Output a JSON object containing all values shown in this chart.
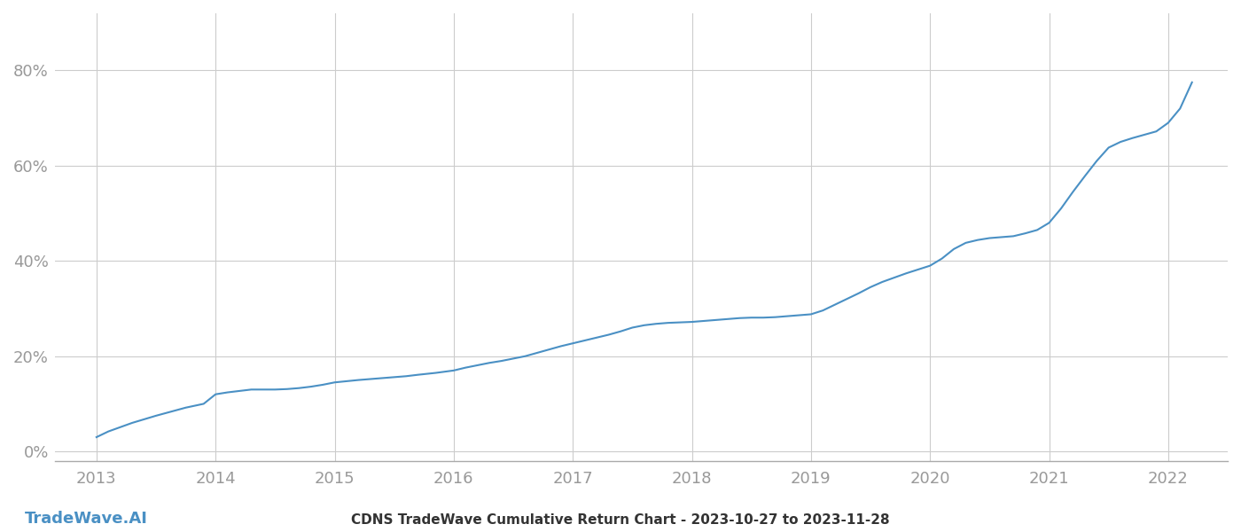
{
  "title_bottom": "CDNS TradeWave Cumulative Return Chart - 2023-10-27 to 2023-11-28",
  "watermark": "TradeWave.AI",
  "line_color": "#4a90c4",
  "background_color": "#ffffff",
  "grid_color": "#cccccc",
  "x_values": [
    2013.0,
    2013.1,
    2013.3,
    2013.5,
    2013.75,
    2013.9,
    2014.0,
    2014.1,
    2014.2,
    2014.3,
    2014.5,
    2014.6,
    2014.7,
    2014.8,
    2014.9,
    2015.0,
    2015.2,
    2015.3,
    2015.4,
    2015.5,
    2015.6,
    2015.7,
    2015.85,
    2016.0,
    2016.1,
    2016.2,
    2016.3,
    2016.4,
    2016.5,
    2016.6,
    2016.7,
    2016.8,
    2016.9,
    2017.0,
    2017.1,
    2017.2,
    2017.3,
    2017.4,
    2017.5,
    2017.6,
    2017.7,
    2017.8,
    2017.9,
    2018.0,
    2018.1,
    2018.2,
    2018.3,
    2018.4,
    2018.5,
    2018.6,
    2018.7,
    2018.8,
    2018.9,
    2019.0,
    2019.1,
    2019.2,
    2019.3,
    2019.4,
    2019.5,
    2019.6,
    2019.7,
    2019.8,
    2019.9,
    2020.0,
    2020.1,
    2020.2,
    2020.3,
    2020.4,
    2020.5,
    2020.6,
    2020.7,
    2020.8,
    2020.9,
    2021.0,
    2021.1,
    2021.2,
    2021.3,
    2021.4,
    2021.5,
    2021.6,
    2021.7,
    2021.8,
    2021.9,
    2022.0,
    2022.1,
    2022.2
  ],
  "y_values": [
    0.03,
    0.042,
    0.06,
    0.075,
    0.092,
    0.1,
    0.12,
    0.124,
    0.127,
    0.13,
    0.13,
    0.131,
    0.133,
    0.136,
    0.14,
    0.145,
    0.15,
    0.152,
    0.154,
    0.156,
    0.158,
    0.161,
    0.165,
    0.17,
    0.176,
    0.181,
    0.186,
    0.19,
    0.195,
    0.2,
    0.207,
    0.214,
    0.221,
    0.227,
    0.233,
    0.239,
    0.245,
    0.252,
    0.26,
    0.265,
    0.268,
    0.27,
    0.271,
    0.272,
    0.274,
    0.276,
    0.278,
    0.28,
    0.281,
    0.281,
    0.282,
    0.284,
    0.286,
    0.288,
    0.296,
    0.308,
    0.32,
    0.332,
    0.345,
    0.356,
    0.365,
    0.374,
    0.382,
    0.39,
    0.405,
    0.425,
    0.438,
    0.444,
    0.448,
    0.45,
    0.452,
    0.458,
    0.465,
    0.48,
    0.51,
    0.545,
    0.578,
    0.61,
    0.638,
    0.65,
    0.658,
    0.665,
    0.672,
    0.69,
    0.72,
    0.775
  ],
  "ylim": [
    -0.02,
    0.92
  ],
  "xlim": [
    2012.65,
    2022.5
  ],
  "yticks": [
    0.0,
    0.2,
    0.4,
    0.6,
    0.8
  ],
  "ytick_labels": [
    "0%",
    "20%",
    "40%",
    "60%",
    "80%"
  ],
  "xticks": [
    2013,
    2014,
    2015,
    2016,
    2017,
    2018,
    2019,
    2020,
    2021,
    2022
  ],
  "tick_color": "#999999",
  "line_width": 1.5,
  "title_fontsize": 11,
  "tick_fontsize": 13,
  "watermark_fontsize": 13,
  "fig_width": 14.0,
  "fig_height": 6.0
}
